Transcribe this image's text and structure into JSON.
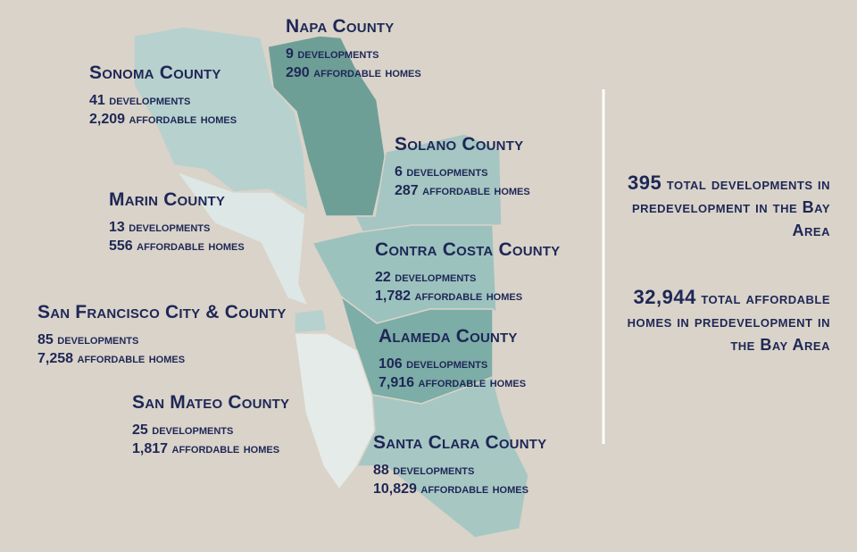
{
  "counties": [
    {
      "name": "Napa County",
      "developments": "9",
      "developments_label": "developments",
      "homes": "290",
      "homes_label": "affordable homes"
    },
    {
      "name": "Sonoma County",
      "developments": "41",
      "developments_label": "developments",
      "homes": "2,209",
      "homes_label": "affordable homes"
    },
    {
      "name": "Solano County",
      "developments": "6",
      "developments_label": "developments",
      "homes": "287",
      "homes_label": "affordable homes"
    },
    {
      "name": "Marin County",
      "developments": "13",
      "developments_label": "developments",
      "homes": "556",
      "homes_label": "affordable homes"
    },
    {
      "name": "Contra Costa County",
      "developments": "22",
      "developments_label": "developments",
      "homes": "1,782",
      "homes_label": "affordable homes"
    },
    {
      "name": "San Francisco City & County",
      "developments": "85",
      "developments_label": "developments",
      "homes": "7,258",
      "homes_label": "affordable homes"
    },
    {
      "name": "Alameda County",
      "developments": "106",
      "developments_label": "developments",
      "homes": "7,916",
      "homes_label": "affordable homes"
    },
    {
      "name": "San Mateo County",
      "developments": "25",
      "developments_label": "developments",
      "homes": "1,817",
      "homes_label": "affordable homes"
    },
    {
      "name": "Santa Clara County",
      "developments": "88",
      "developments_label": "developments",
      "homes": "10,829",
      "homes_label": "affordable homes"
    }
  ],
  "summary": [
    {
      "number": "395",
      "text": "total developments in predevelopment in the Bay Area"
    },
    {
      "number": "32,944",
      "text": "total affordable homes in predevelopment in the Bay Area"
    }
  ]
}
